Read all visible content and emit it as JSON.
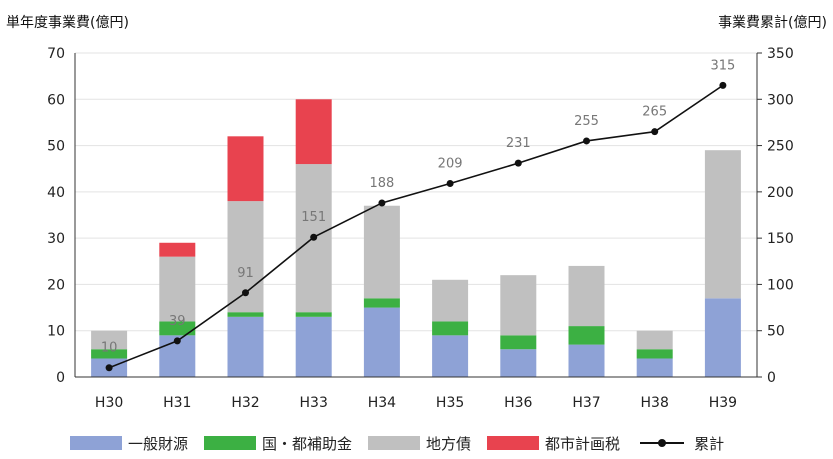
{
  "chart_data": {
    "type": "bar",
    "stacked": true,
    "categories": [
      "H30",
      "H31",
      "H32",
      "H33",
      "H34",
      "H35",
      "H36",
      "H37",
      "H38",
      "H39"
    ],
    "ylabel_left": "単年度事業費(億円)",
    "ylabel_right": "事業費累計(億円)",
    "ylim_left": [
      0,
      70
    ],
    "yticks_left": [
      0,
      10,
      20,
      30,
      40,
      50,
      60,
      70
    ],
    "ylim_right": [
      0,
      350
    ],
    "yticks_right": [
      0,
      50,
      100,
      150,
      200,
      250,
      300,
      350
    ],
    "series": [
      {
        "name": "一般財源",
        "color": "#8ea2d6",
        "values": [
          4,
          9,
          13,
          13,
          15,
          9,
          6,
          7,
          4,
          17
        ]
      },
      {
        "name": "国・都補助金",
        "color": "#3cb043",
        "values": [
          2,
          3,
          1,
          1,
          2,
          3,
          3,
          4,
          2,
          0
        ]
      },
      {
        "name": "地方債",
        "color": "#c0c0c0",
        "values": [
          4,
          14,
          24,
          32,
          20,
          9,
          13,
          13,
          4,
          32
        ]
      },
      {
        "name": "都市計画税",
        "color": "#e8434f",
        "values": [
          0,
          3,
          14,
          14,
          0,
          0,
          0,
          0,
          0,
          0
        ]
      }
    ],
    "line": {
      "name": "累計",
      "color": "#111111",
      "values": [
        10,
        39,
        91,
        151,
        188,
        209,
        231,
        255,
        265,
        315
      ]
    },
    "legend_position": "bottom",
    "grid": true
  }
}
